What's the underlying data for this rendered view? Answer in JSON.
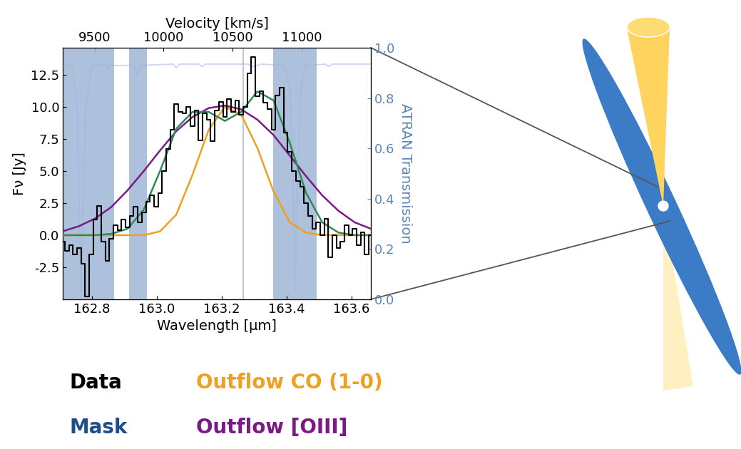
{
  "chart_data": {
    "type": "line",
    "x_label": "Wavelength [μm]",
    "x2_label": "Velocity [km/s]",
    "y_label": "Fν [Jy]",
    "y2_label": "ATRAN Transmission",
    "xlim": [
      162.71,
      163.66
    ],
    "xticks": [
      162.8,
      163.0,
      163.2,
      163.4,
      163.6
    ],
    "x2lim": [
      9270,
      11500
    ],
    "x2ticks": [
      9500,
      10000,
      10500,
      11000
    ],
    "ylim": [
      -5.0,
      14.6
    ],
    "yticks": [
      -2.5,
      0.0,
      2.5,
      5.0,
      7.5,
      10.0,
      12.5
    ],
    "y2lim": [
      0.0,
      1.0
    ],
    "y2ticks": [
      0.0,
      0.2,
      0.4,
      0.6,
      0.8,
      1.0
    ],
    "legend": "below",
    "reference_line": 163.266,
    "mask": {
      "name": "Mask",
      "color": "#1f4e8c",
      "shade_color": "#9fb6d8",
      "ranges": [
        [
          162.71,
          162.869
        ],
        [
          162.915,
          162.97
        ],
        [
          163.359,
          163.492
        ]
      ]
    },
    "series": [
      {
        "name": "Data",
        "type": "step",
        "color": "#000000",
        "x": [
          162.71,
          162.7225,
          162.735,
          162.7475,
          162.76,
          162.7725,
          162.785,
          162.7975,
          162.81,
          162.8225,
          162.835,
          162.8475,
          162.86,
          162.8725,
          162.885,
          162.8975,
          162.91,
          162.9225,
          162.935,
          162.9475,
          162.96,
          162.9725,
          162.985,
          162.9975,
          163.01,
          163.0225,
          163.035,
          163.0475,
          163.06,
          163.0725,
          163.085,
          163.0975,
          163.11,
          163.1225,
          163.135,
          163.1475,
          163.16,
          163.1725,
          163.185,
          163.1975,
          163.21,
          163.2225,
          163.235,
          163.2475,
          163.26,
          163.2725,
          163.285,
          163.2975,
          163.31,
          163.3225,
          163.335,
          163.3475,
          163.36,
          163.3725,
          163.385,
          163.3975,
          163.41,
          163.4225,
          163.435,
          163.4475,
          163.46,
          163.4725,
          163.485,
          163.4975,
          163.51,
          163.5225,
          163.535,
          163.5475,
          163.56,
          163.5725,
          163.585,
          163.5975,
          163.61,
          163.6225,
          163.635,
          163.6475,
          163.66
        ],
        "values": [
          -0.5,
          -1.2,
          -0.8,
          -1.5,
          -1.0,
          -2.2,
          -4.8,
          -1.5,
          1.2,
          2.3,
          -0.5,
          -2.0,
          -0.3,
          0.8,
          0.4,
          1.2,
          0.6,
          1.5,
          2.2,
          1.0,
          1.8,
          2.6,
          3.1,
          2.2,
          3.3,
          5.0,
          6.7,
          8.2,
          10.2,
          9.6,
          9.5,
          10.0,
          8.5,
          9.7,
          7.4,
          9.5,
          9.0,
          7.3,
          9.7,
          10.4,
          9.2,
          10.6,
          9.6,
          10.5,
          9.4,
          10.0,
          12.6,
          13.9,
          10.8,
          11.2,
          10.3,
          9.8,
          8.2,
          10.9,
          11.5,
          8.0,
          6.5,
          5.0,
          4.2,
          3.8,
          2.5,
          1.5,
          0.5,
          1.0,
          0.0,
          1.3,
          -1.7,
          0.0,
          -1.0,
          -0.5,
          0.8,
          0.0,
          0.5,
          -0.8,
          0.2,
          -1.5,
          0.0
        ]
      },
      {
        "name": "Outflow CO (1-0)",
        "type": "line",
        "color": "#f0a020",
        "x": [
          162.71,
          162.76,
          162.81,
          162.86,
          162.91,
          162.96,
          163.01,
          163.06,
          163.11,
          163.16,
          163.21,
          163.26,
          163.31,
          163.36,
          163.41,
          163.46,
          163.51,
          163.56,
          163.61,
          163.66
        ],
        "values": [
          0.0,
          0.0,
          0.0,
          0.0,
          0.0,
          0.0,
          0.3,
          1.6,
          4.7,
          8.2,
          10.0,
          9.4,
          6.8,
          3.4,
          1.0,
          0.2,
          0.0,
          0.0,
          0.0,
          0.0
        ]
      },
      {
        "name": "Outflow [OIII]",
        "type": "line",
        "color": "#7b1a86",
        "x": [
          162.71,
          162.76,
          162.81,
          162.86,
          162.91,
          162.96,
          163.01,
          163.06,
          163.11,
          163.16,
          163.21,
          163.26,
          163.31,
          163.36,
          163.41,
          163.46,
          163.51,
          163.56,
          163.61,
          163.66
        ],
        "values": [
          0.3,
          0.7,
          1.3,
          2.2,
          3.5,
          5.0,
          6.6,
          8.1,
          9.2,
          9.9,
          10.1,
          9.8,
          9.0,
          7.8,
          6.2,
          4.6,
          3.1,
          1.9,
          1.0,
          0.5
        ]
      },
      {
        "type": "line",
        "color": "#2e8b57",
        "x": [
          162.71,
          162.76,
          162.81,
          162.86,
          162.91,
          162.96,
          163.01,
          163.06,
          163.11,
          163.16,
          163.21,
          163.26,
          163.31,
          163.36,
          163.41,
          163.46,
          163.51,
          163.56,
          163.61,
          163.66
        ],
        "values": [
          0.0,
          0.0,
          0.0,
          0.1,
          0.5,
          2.0,
          5.0,
          8.3,
          9.6,
          9.6,
          8.9,
          9.6,
          11.2,
          10.5,
          7.2,
          3.3,
          1.0,
          0.2,
          0.0,
          0.0
        ]
      },
      {
        "type": "line",
        "axis": "y2",
        "color": "#c9d7ec",
        "x": [
          162.71,
          162.74,
          162.755,
          162.762,
          162.767,
          162.772,
          162.78,
          162.8,
          162.845,
          162.85,
          162.855,
          162.93,
          162.94,
          162.95,
          163.05,
          163.06,
          163.07,
          163.13,
          163.14,
          163.15,
          163.28,
          163.3,
          163.32,
          163.39,
          163.41,
          163.42,
          163.427,
          163.434,
          163.445,
          163.46,
          163.52,
          163.53,
          163.54,
          163.66
        ],
        "values": [
          0.935,
          0.93,
          0.75,
          0.3,
          0.03,
          0.3,
          0.75,
          0.93,
          0.93,
          0.91,
          0.93,
          0.93,
          0.89,
          0.93,
          0.935,
          0.92,
          0.935,
          0.935,
          0.925,
          0.935,
          0.935,
          0.925,
          0.935,
          0.93,
          0.85,
          0.5,
          0.03,
          0.5,
          0.85,
          0.93,
          0.935,
          0.925,
          0.935,
          0.935
        ]
      }
    ]
  }
}
